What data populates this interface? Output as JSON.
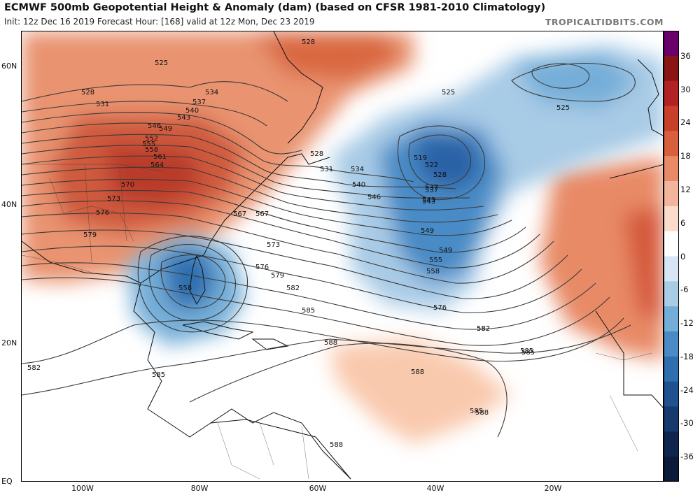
{
  "header": {
    "title": "ECMWF 500mb Geopotential Height & Anomaly (dam) (based on CFSR 1981-2010 Climatology)",
    "subtitle": "Init: 12z Dec 16 2019   Forecast Hour: [168]   valid at 12z Mon, Dec 23 2019",
    "brand": "TROPICALTIDBITS.COM"
  },
  "axes": {
    "lat_labels": [
      "60N",
      "40N",
      "20N",
      "EQ"
    ],
    "lon_labels": [
      "100W",
      "80W",
      "60W",
      "40W",
      "20W"
    ]
  },
  "colorbar": {
    "ticks": [
      "36",
      "30",
      "24",
      "18",
      "12",
      "6",
      "0",
      "-6",
      "-12",
      "-18",
      "-24",
      "-30",
      "-36"
    ],
    "colors": [
      "#6a006a",
      "#8a1414",
      "#b22222",
      "#c8402a",
      "#d9603f",
      "#e88a66",
      "#f2b49a",
      "#fbdccb",
      "#ffffff",
      "#d6e6f4",
      "#a8cbe6",
      "#74aed8",
      "#4a8bc6",
      "#2f6fb0",
      "#1f528f",
      "#163a6e",
      "#0f2550",
      "#0b1a38"
    ]
  },
  "contour_labels": {
    "labels": [
      "528",
      "525",
      "528",
      "531",
      "534",
      "537",
      "540",
      "543",
      "546",
      "549",
      "552",
      "555",
      "558",
      "561",
      "564",
      "567",
      "570",
      "573",
      "576",
      "579",
      "582",
      "585",
      "588",
      "525",
      "525",
      "528",
      "531",
      "534",
      "537",
      "540",
      "543",
      "546",
      "549",
      "555",
      "558",
      "519",
      "522",
      "528",
      "537",
      "543",
      "549",
      "567",
      "573",
      "576",
      "579",
      "582",
      "585",
      "558",
      "576",
      "582",
      "585",
      "588",
      "585",
      "588",
      "582",
      "585",
      "588"
    ]
  }
}
